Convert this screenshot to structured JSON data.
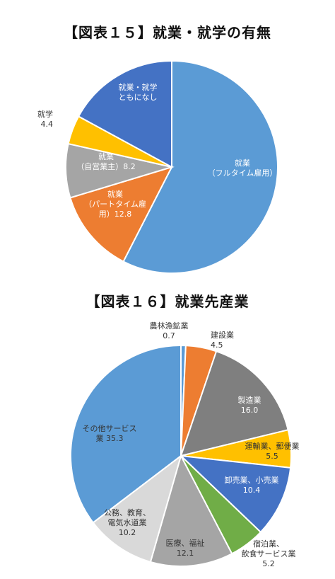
{
  "chart_data": [
    {
      "type": "pie",
      "title": "【図表１５】就業・就学の有無",
      "slices": [
        {
          "label_lines": [
            "就業",
            "（フルタイム雇用）"
          ],
          "value": 57.6,
          "color": "#5B9BD5",
          "text_color": "#ffffff"
        },
        {
          "label_lines": [
            "就業",
            "（パートタイム雇",
            "用）12.8"
          ],
          "value": 12.8,
          "color": "#ED7D31",
          "text_color": "#ffffff"
        },
        {
          "label_lines": [
            "就業",
            "（自営業主）8.2"
          ],
          "value": 8.2,
          "color": "#A5A5A5",
          "text_color": "#ffffff"
        },
        {
          "label_lines": [
            "就学",
            "4.4"
          ],
          "value": 4.4,
          "color": "#FFC000",
          "text_color": "#333333"
        },
        {
          "label_lines": [
            "就業・就学",
            "ともになし"
          ],
          "value": 17.1,
          "color": "#4472C4",
          "text_color": "#ffffff"
        }
      ]
    },
    {
      "type": "pie",
      "title": "【図表１６】就業先産業",
      "slices": [
        {
          "label_lines": [
            "農林漁鉱業",
            "0.7"
          ],
          "value": 0.7,
          "color": "#5B9BD5",
          "text_color": "#333333"
        },
        {
          "label_lines": [
            "建設業",
            "4.5"
          ],
          "value": 4.5,
          "color": "#ED7D31",
          "text_color": "#333333"
        },
        {
          "label_lines": [
            "製造業",
            "16.0"
          ],
          "value": 16.0,
          "color": "#7F7F7F",
          "text_color": "#ffffff"
        },
        {
          "label_lines": [
            "運輸業、郵便業",
            "5.5"
          ],
          "value": 5.5,
          "color": "#FFC000",
          "text_color": "#333333"
        },
        {
          "label_lines": [
            "卸売業、小売業",
            "10.4"
          ],
          "value": 10.4,
          "color": "#4472C4",
          "text_color": "#ffffff"
        },
        {
          "label_lines": [
            "宿泊業、",
            "飲食サービス業",
            "5.2"
          ],
          "value": 5.2,
          "color": "#70AD47",
          "text_color": "#333333"
        },
        {
          "label_lines": [
            "医療、福祉",
            "12.1"
          ],
          "value": 12.1,
          "color": "#A5A5A5",
          "text_color": "#333333"
        },
        {
          "label_lines": [
            "公務、教育、",
            "電気水道業",
            "10.2"
          ],
          "value": 10.2,
          "color": "#D9D9D9",
          "text_color": "#333333"
        },
        {
          "label_lines": [
            "その他サービス",
            "業 35.3"
          ],
          "value": 35.3,
          "color": "#5B9BD5",
          "text_color": "#333333"
        }
      ]
    }
  ]
}
